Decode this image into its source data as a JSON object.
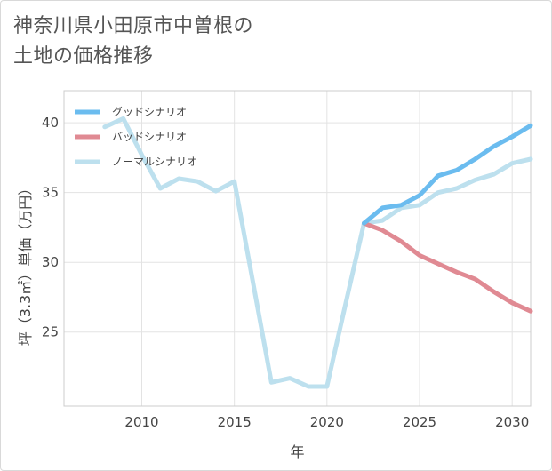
{
  "title": {
    "line1": "神奈川県小田原市中曽根の",
    "line2": "土地の価格推移"
  },
  "chart_data": {
    "type": "line",
    "xlabel": "年",
    "ylabel": "坪（3.3㎡）単価（万円）",
    "xlim": [
      2005.8,
      2031
    ],
    "ylim": [
      19.7,
      42.3
    ],
    "xticks": [
      2010,
      2015,
      2020,
      2025,
      2030
    ],
    "xtick_labels": [
      "2010",
      "2015",
      "2020",
      "2025",
      "2030"
    ],
    "yticks": [
      25,
      30,
      35,
      40
    ],
    "ytick_labels": [
      "25",
      "30",
      "35",
      "40"
    ],
    "grid": true,
    "legend_position": "top-left",
    "series": [
      {
        "name": "グッドシナリオ",
        "color": "#6bbcef",
        "x": [
          2022,
          2023,
          2024,
          2025,
          2026,
          2027,
          2028,
          2029,
          2030,
          2031
        ],
        "values": [
          32.8,
          33.9,
          34.1,
          34.8,
          36.2,
          36.6,
          37.4,
          38.3,
          39.0,
          39.8
        ]
      },
      {
        "name": "バッドシナリオ",
        "color": "#e08a93",
        "x": [
          2022,
          2023,
          2024,
          2025,
          2026,
          2027,
          2028,
          2029,
          2030,
          2031
        ],
        "values": [
          32.8,
          32.3,
          31.5,
          30.5,
          29.9,
          29.3,
          28.8,
          27.9,
          27.1,
          26.5
        ]
      },
      {
        "name": "ノーマルシナリオ",
        "color": "#bde0ee",
        "x": [
          2008,
          2009,
          2010,
          2011,
          2012,
          2013,
          2014,
          2015,
          2016,
          2017,
          2018,
          2019,
          2020,
          2021,
          2022,
          2023,
          2024,
          2025,
          2026,
          2027,
          2028,
          2029,
          2030,
          2031
        ],
        "values": [
          39.7,
          40.3,
          37.7,
          35.3,
          36.0,
          35.8,
          35.1,
          35.8,
          28.6,
          21.4,
          21.7,
          21.1,
          21.1,
          27.0,
          32.8,
          33.0,
          33.9,
          34.1,
          35.0,
          35.3,
          35.9,
          36.3,
          37.1,
          37.4
        ]
      }
    ]
  }
}
